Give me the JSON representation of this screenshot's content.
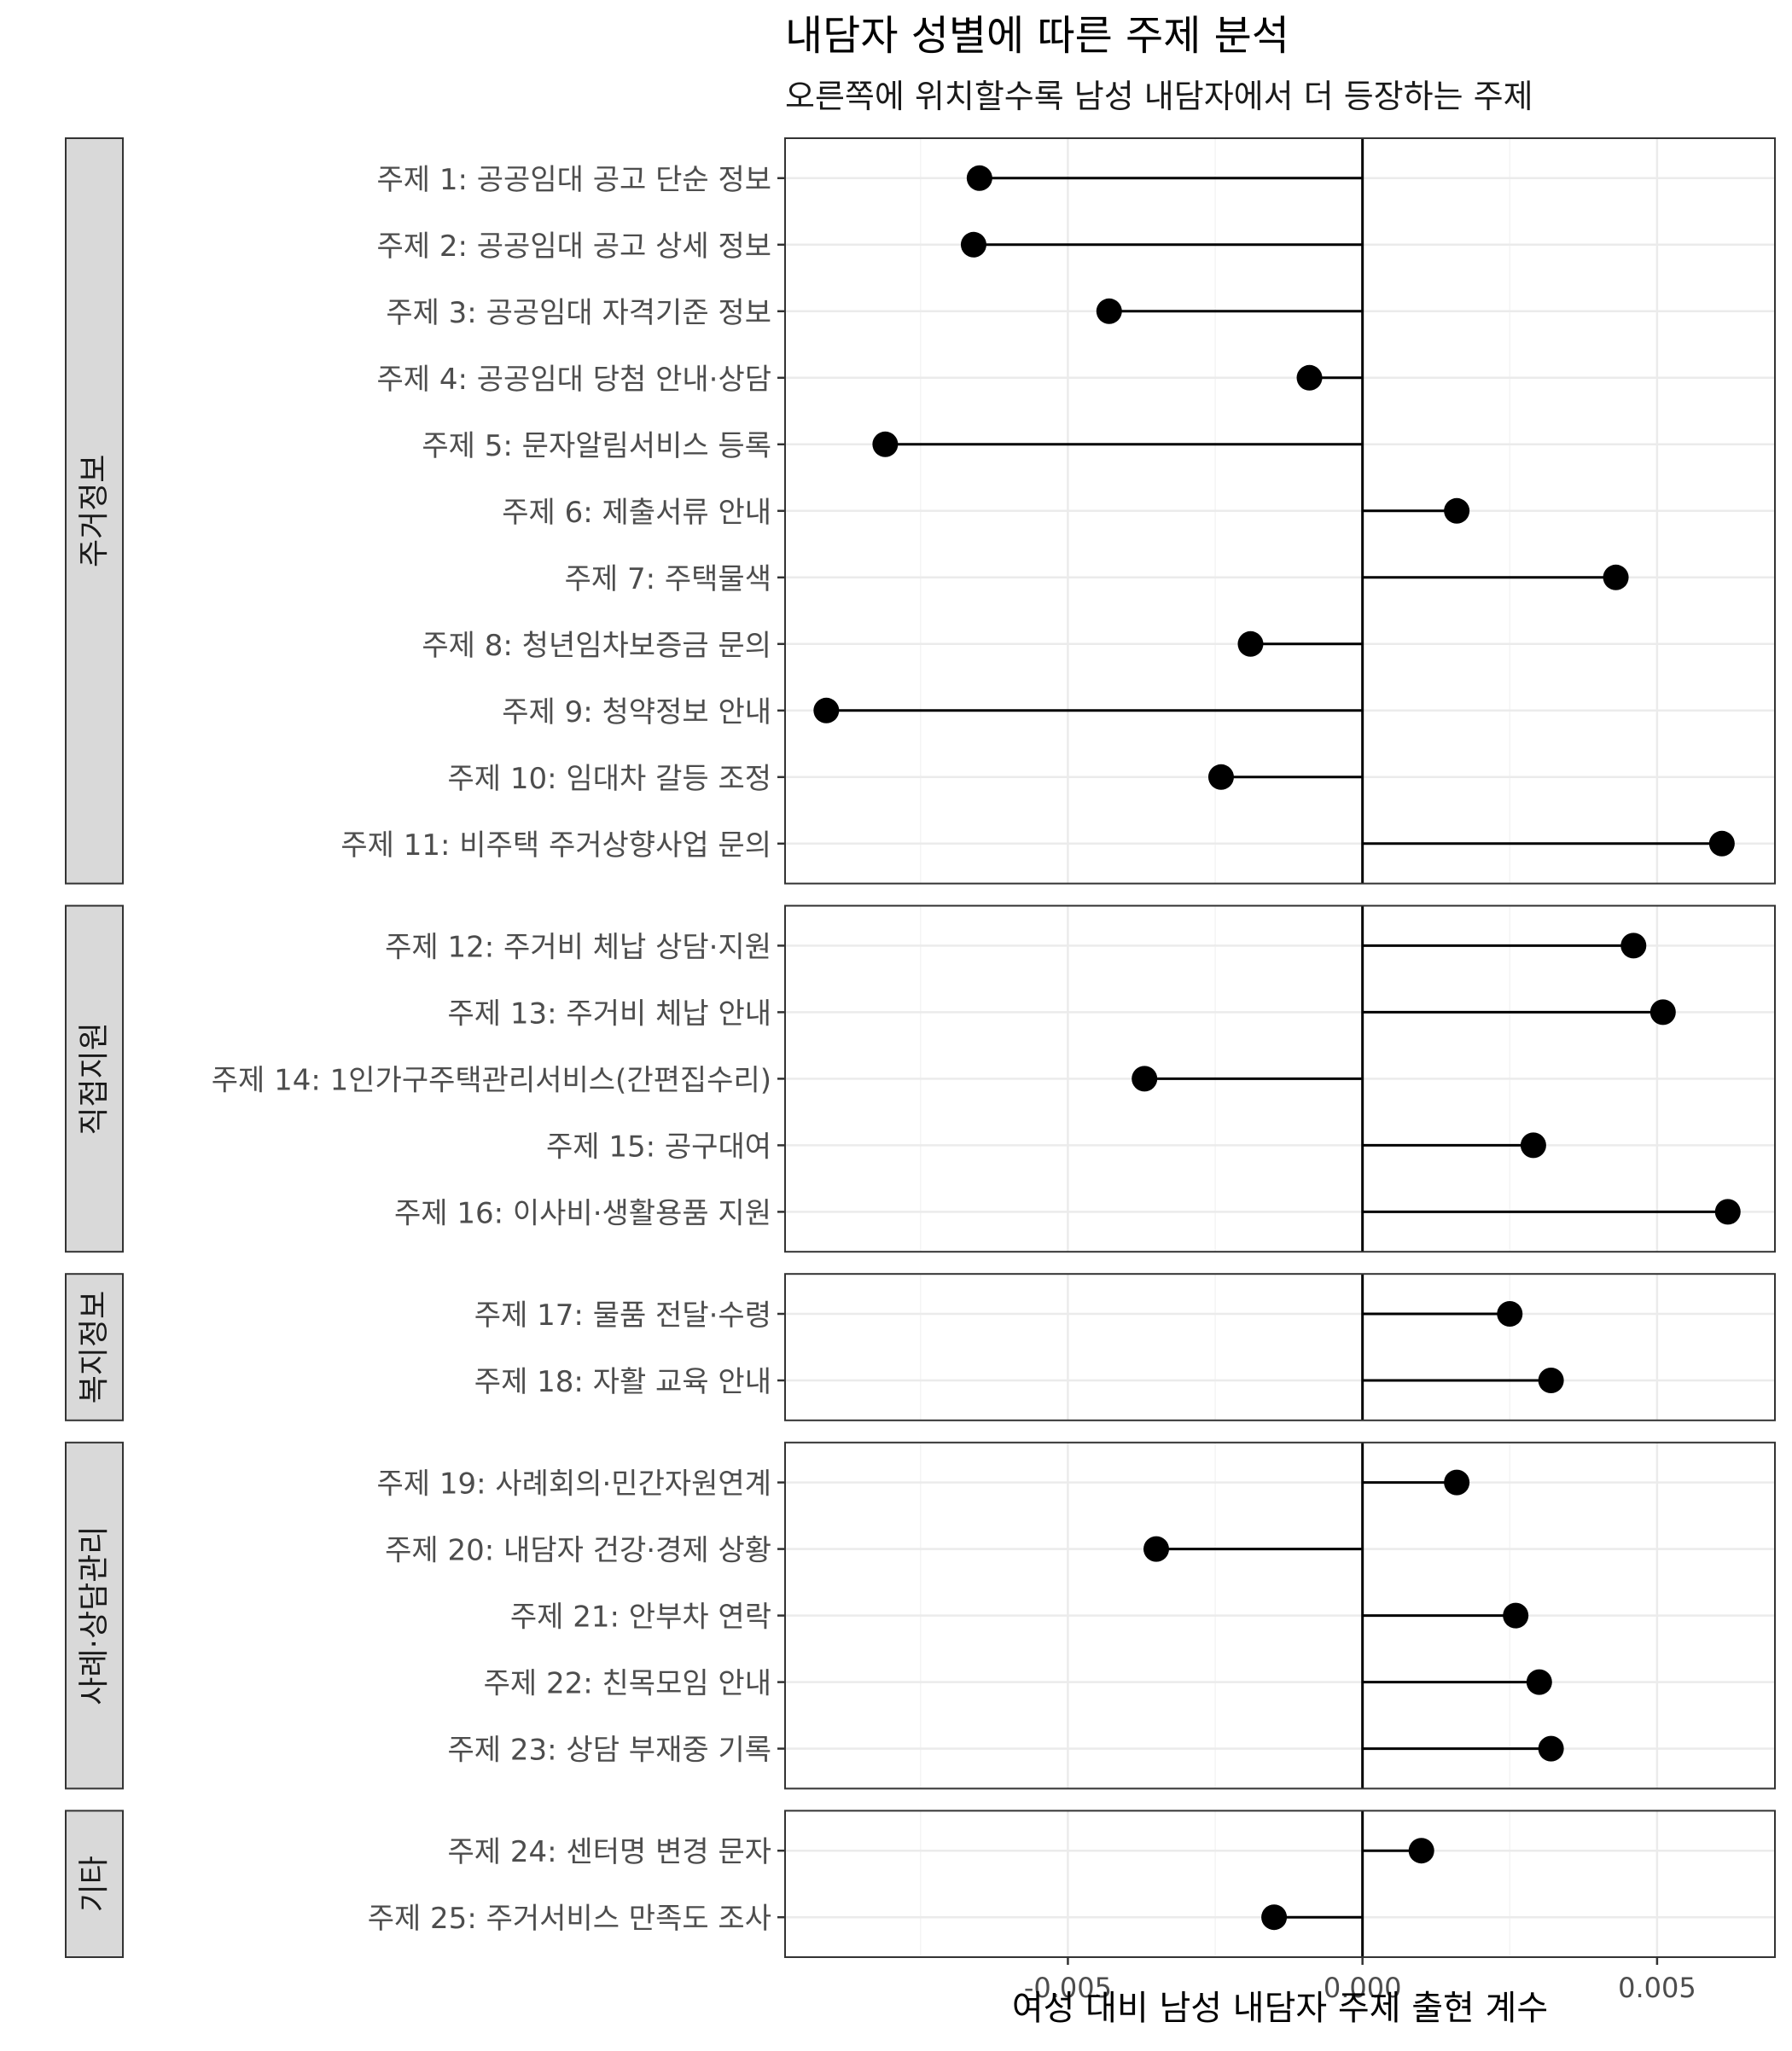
{
  "chart_data": {
    "type": "lollipop",
    "title": "내담자 성별에 따른 주제 분석",
    "subtitle": "오른쪽에 위치할수록 남성 내담자에서 더 등장하는 주제",
    "xlabel": "여성 대비 남성 내담자 주제 출현 계수",
    "ylabel": "",
    "xlim": [
      -0.0098,
      0.007
    ],
    "x_ticks": [
      {
        "value": -0.005,
        "label": "-0.005"
      },
      {
        "value": 0.0,
        "label": "0.000"
      },
      {
        "value": 0.005,
        "label": "0.005"
      }
    ],
    "x_minor": [
      -0.0075,
      -0.0025,
      0.0025
    ],
    "reference_line": 0,
    "grid": true,
    "legend": "none",
    "colors": {
      "point": "#000000",
      "segment": "#000000",
      "strip_fill": "#d9d9d9",
      "strip_border": "#333333",
      "panel_border": "#333333",
      "grid_major": "#ebebeb",
      "grid_minor": "#f4f4f4"
    },
    "facets": [
      {
        "name": "주거정보",
        "items": [
          {
            "label": "주제 1: 공공임대 공고 단순 정보",
            "value": -0.0065
          },
          {
            "label": "주제 2: 공공임대 공고 상세 정보",
            "value": -0.0066
          },
          {
            "label": "주제 3: 공공임대 자격기준 정보",
            "value": -0.0043
          },
          {
            "label": "주제 4: 공공임대 당첨 안내·상담",
            "value": -0.0009
          },
          {
            "label": "주제 5: 문자알림서비스 등록",
            "value": -0.0081
          },
          {
            "label": "주제 6: 제출서류 안내",
            "value": 0.0016
          },
          {
            "label": "주제 7: 주택물색",
            "value": 0.0043
          },
          {
            "label": "주제 8: 청년임차보증금 문의",
            "value": -0.0019
          },
          {
            "label": "주제 9: 청약정보 안내",
            "value": -0.0091
          },
          {
            "label": "주제 10: 임대차 갈등 조정",
            "value": -0.0024
          },
          {
            "label": "주제 11: 비주택 주거상향사업 문의",
            "value": 0.0061
          }
        ]
      },
      {
        "name": "직접지원",
        "items": [
          {
            "label": "주제 12: 주거비 체납 상담·지원",
            "value": 0.0046
          },
          {
            "label": "주제 13: 주거비 체납 안내",
            "value": 0.0051
          },
          {
            "label": "주제 14: 1인가구주택관리서비스(간편집수리)",
            "value": -0.0037
          },
          {
            "label": "주제 15: 공구대여",
            "value": 0.0029
          },
          {
            "label": "주제 16: 이사비·생활용품 지원",
            "value": 0.0062
          }
        ]
      },
      {
        "name": "복지정보",
        "items": [
          {
            "label": "주제 17: 물품 전달·수령",
            "value": 0.0025
          },
          {
            "label": "주제 18: 자활 교육 안내",
            "value": 0.0032
          }
        ]
      },
      {
        "name": "사례·상담관리",
        "items": [
          {
            "label": "주제 19: 사례회의·민간자원연계",
            "value": 0.0016
          },
          {
            "label": "주제 20: 내담자 건강·경제 상황",
            "value": -0.0035
          },
          {
            "label": "주제 21: 안부차 연락",
            "value": 0.0026
          },
          {
            "label": "주제 22: 친목모임 안내",
            "value": 0.003
          },
          {
            "label": "주제 23: 상담 부재중 기록",
            "value": 0.0032
          }
        ]
      },
      {
        "name": "기타",
        "items": [
          {
            "label": "주제 24: 센터명 변경 문자",
            "value": 0.001
          },
          {
            "label": "주제 25: 주거서비스 만족도 조사",
            "value": -0.0015
          }
        ]
      }
    ]
  }
}
